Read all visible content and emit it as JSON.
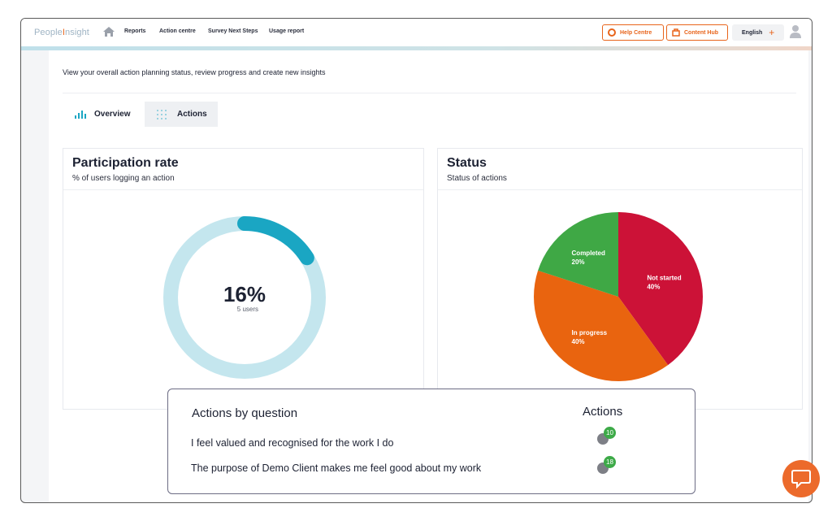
{
  "nav": {
    "logo_part1": "People",
    "logo_part2": "Insight",
    "home_icon": "home-icon",
    "links": [
      "Reports",
      "Action centre",
      "Survey Next Steps",
      "Usage report"
    ],
    "help_centre": "Help Centre",
    "content_hub": "Content Hub",
    "language": "English",
    "accent_color": "#e8641b"
  },
  "page": {
    "intro": "View your overall action planning status, review progress and create new insights",
    "tabs": [
      {
        "label": "Overview",
        "icon": "bar-chart-icon"
      },
      {
        "label": "Actions",
        "icon": "grid-dots-icon"
      }
    ],
    "active_tab": "Actions"
  },
  "participation": {
    "title": "Participation rate",
    "subtitle": "% of users  logging an action",
    "value_label": "16%",
    "users_label": "5 users",
    "rate": 0.16,
    "track_color": "#c4e6ee",
    "fill_color": "#1aa6c3"
  },
  "status": {
    "title": "Status",
    "subtitle": "Status of actions"
  },
  "chart_data": {
    "type": "pie",
    "title": "Status",
    "slices": [
      {
        "label": "Not started",
        "pct_label": "40%",
        "value": 40,
        "color": "#cc1237"
      },
      {
        "label": "In progress",
        "pct_label": "40%",
        "value": 40,
        "color": "#e9640f"
      },
      {
        "label": "Completed",
        "pct_label": "20%",
        "value": 20,
        "color": "#3fa845"
      }
    ]
  },
  "actions_by_question": {
    "title": "Actions by question",
    "column": "Actions",
    "rows": [
      {
        "question": "I feel valued and recognised for the work I do",
        "count": "10"
      },
      {
        "question": "The purpose of Demo Client makes me feel good about my work",
        "count": "18"
      }
    ]
  },
  "chat": {
    "icon": "chat-bubble-icon"
  }
}
